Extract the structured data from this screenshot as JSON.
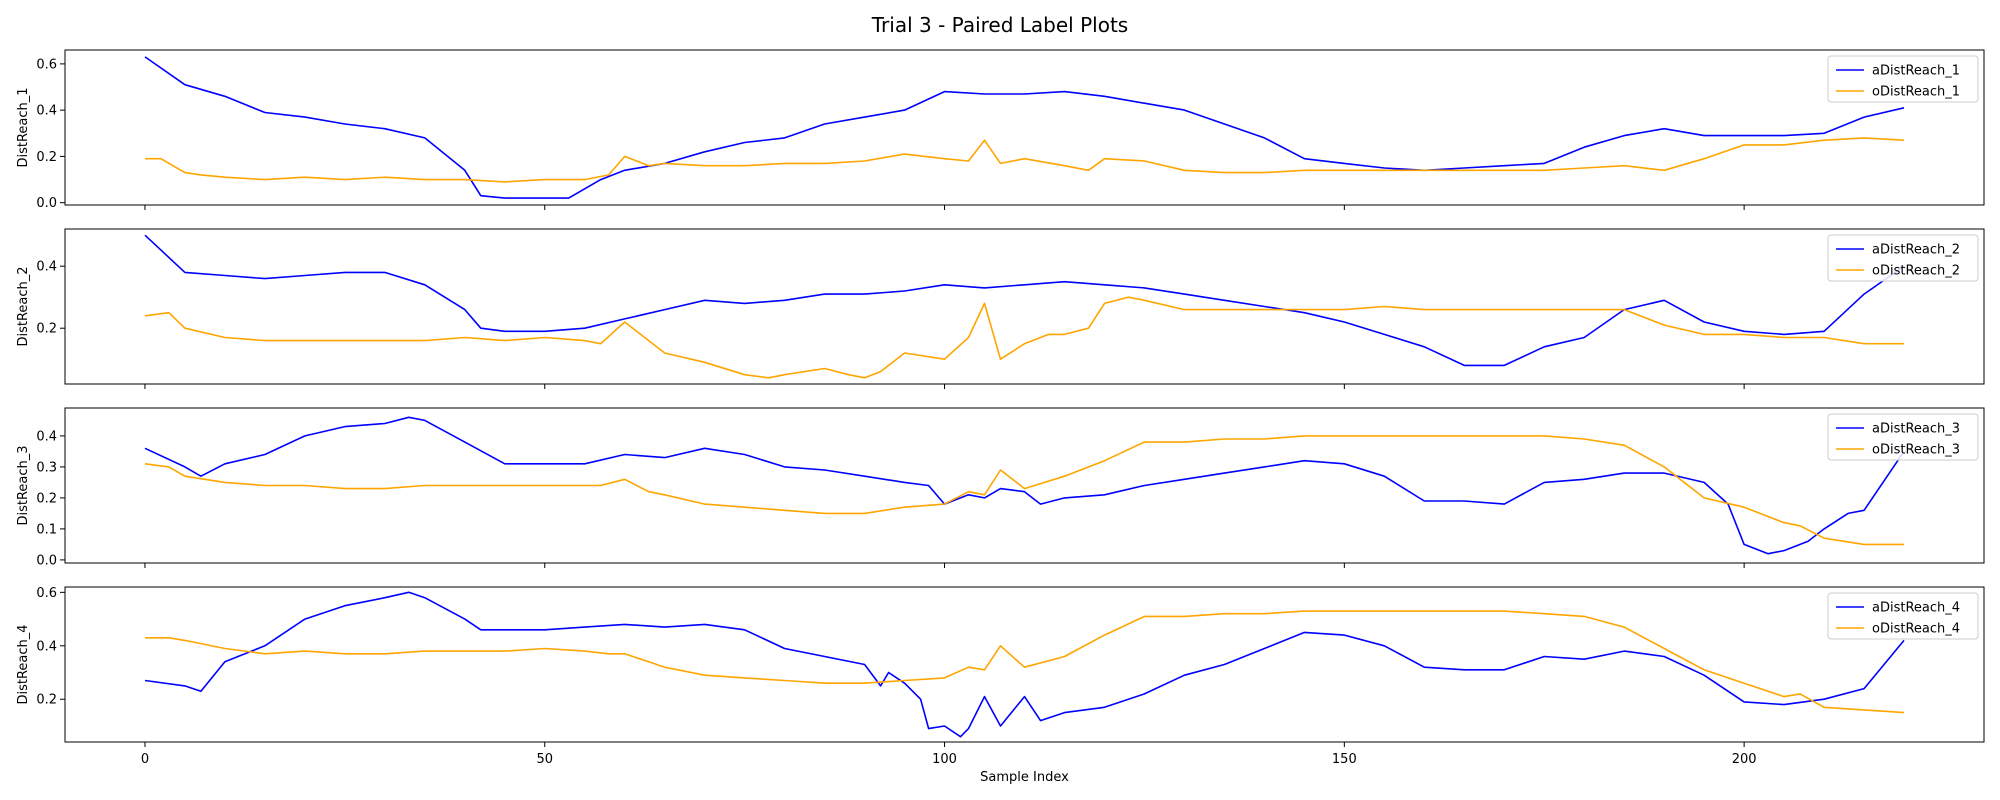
{
  "chart_data": {
    "type": "line",
    "title": "Trial 3 - Paired Label Plots",
    "xlabel": "Sample Index",
    "xlim": [
      -10,
      230
    ],
    "xticks": [
      0,
      50,
      100,
      150,
      200
    ],
    "grid": false,
    "legend_placement": "top-right",
    "colors": {
      "a": "#0000ff",
      "o": "#ffa500"
    },
    "x_step": 5,
    "subplots": [
      {
        "ylabel": "DistReach_1",
        "ylim": [
          -0.01,
          0.66
        ],
        "yticks": [
          0.0,
          0.2,
          0.4,
          0.6
        ],
        "yticklabels": [
          "0.0",
          "0.2",
          "0.4",
          "0.6"
        ],
        "series": [
          {
            "name": "aDistReach_1",
            "color_key": "a",
            "x": [
              0,
              5,
              10,
              15,
              20,
              25,
              30,
              35,
              40,
              42,
              45,
              50,
              53,
              55,
              57,
              60,
              65,
              70,
              75,
              80,
              85,
              90,
              95,
              100,
              105,
              110,
              115,
              120,
              125,
              130,
              135,
              140,
              145,
              150,
              155,
              160,
              165,
              170,
              175,
              180,
              185,
              190,
              195,
              200,
              205,
              210,
              215,
              220
            ],
            "y": [
              0.63,
              0.51,
              0.46,
              0.39,
              0.37,
              0.34,
              0.32,
              0.28,
              0.14,
              0.03,
              0.02,
              0.02,
              0.02,
              0.06,
              0.1,
              0.14,
              0.17,
              0.22,
              0.26,
              0.28,
              0.34,
              0.37,
              0.4,
              0.48,
              0.47,
              0.47,
              0.48,
              0.46,
              0.43,
              0.4,
              0.34,
              0.28,
              0.19,
              0.17,
              0.15,
              0.14,
              0.15,
              0.16,
              0.17,
              0.24,
              0.29,
              0.32,
              0.29,
              0.29,
              0.29,
              0.3,
              0.37,
              0.41
            ]
          },
          {
            "name": "oDistReach_1",
            "color_key": "o",
            "x": [
              0,
              2,
              5,
              7,
              10,
              15,
              20,
              25,
              30,
              35,
              40,
              45,
              50,
              55,
              58,
              60,
              63,
              65,
              70,
              75,
              80,
              85,
              90,
              95,
              100,
              103,
              105,
              107,
              110,
              115,
              118,
              120,
              125,
              130,
              135,
              140,
              145,
              150,
              155,
              160,
              165,
              170,
              175,
              180,
              185,
              190,
              195,
              200,
              205,
              210,
              215,
              220
            ],
            "y": [
              0.19,
              0.19,
              0.13,
              0.12,
              0.11,
              0.1,
              0.11,
              0.1,
              0.11,
              0.1,
              0.1,
              0.09,
              0.1,
              0.1,
              0.12,
              0.2,
              0.16,
              0.17,
              0.16,
              0.16,
              0.17,
              0.17,
              0.18,
              0.21,
              0.19,
              0.18,
              0.27,
              0.17,
              0.19,
              0.16,
              0.14,
              0.19,
              0.18,
              0.14,
              0.13,
              0.13,
              0.14,
              0.14,
              0.14,
              0.14,
              0.14,
              0.14,
              0.14,
              0.15,
              0.16,
              0.14,
              0.19,
              0.25,
              0.25,
              0.27,
              0.28,
              0.27
            ]
          }
        ]
      },
      {
        "ylabel": "DistReach_2",
        "ylim": [
          0.02,
          0.52
        ],
        "yticks": [
          0.2,
          0.4
        ],
        "yticklabels": [
          "0.2",
          "0.4"
        ],
        "series": [
          {
            "name": "aDistReach_2",
            "color_key": "a",
            "x": [
              0,
              5,
              10,
              15,
              20,
              25,
              30,
              35,
              40,
              42,
              45,
              50,
              55,
              60,
              65,
              70,
              75,
              80,
              85,
              90,
              95,
              100,
              105,
              110,
              115,
              120,
              125,
              130,
              135,
              140,
              145,
              150,
              155,
              160,
              165,
              170,
              175,
              180,
              185,
              190,
              195,
              200,
              205,
              210,
              215,
              220
            ],
            "y": [
              0.5,
              0.38,
              0.37,
              0.36,
              0.37,
              0.38,
              0.38,
              0.34,
              0.26,
              0.2,
              0.19,
              0.19,
              0.2,
              0.23,
              0.26,
              0.29,
              0.28,
              0.29,
              0.31,
              0.31,
              0.32,
              0.34,
              0.33,
              0.34,
              0.35,
              0.34,
              0.33,
              0.31,
              0.29,
              0.27,
              0.25,
              0.22,
              0.18,
              0.14,
              0.08,
              0.08,
              0.14,
              0.17,
              0.26,
              0.29,
              0.22,
              0.19,
              0.18,
              0.19,
              0.31,
              0.4
            ]
          },
          {
            "name": "oDistReach_2",
            "color_key": "o",
            "x": [
              0,
              3,
              5,
              10,
              15,
              20,
              25,
              30,
              35,
              40,
              45,
              50,
              55,
              57,
              60,
              63,
              65,
              70,
              75,
              78,
              80,
              85,
              88,
              90,
              92,
              95,
              100,
              103,
              105,
              107,
              110,
              113,
              115,
              118,
              120,
              123,
              125,
              130,
              135,
              140,
              145,
              150,
              155,
              160,
              165,
              170,
              175,
              180,
              185,
              190,
              195,
              200,
              205,
              210,
              215,
              220
            ],
            "y": [
              0.24,
              0.25,
              0.2,
              0.17,
              0.16,
              0.16,
              0.16,
              0.16,
              0.16,
              0.17,
              0.16,
              0.17,
              0.16,
              0.15,
              0.22,
              0.16,
              0.12,
              0.09,
              0.05,
              0.04,
              0.05,
              0.07,
              0.05,
              0.04,
              0.06,
              0.12,
              0.1,
              0.17,
              0.28,
              0.1,
              0.15,
              0.18,
              0.18,
              0.2,
              0.28,
              0.3,
              0.29,
              0.26,
              0.26,
              0.26,
              0.26,
              0.26,
              0.27,
              0.26,
              0.26,
              0.26,
              0.26,
              0.26,
              0.26,
              0.21,
              0.18,
              0.18,
              0.17,
              0.17,
              0.15,
              0.15
            ]
          }
        ]
      },
      {
        "ylabel": "DistReach_3",
        "ylim": [
          -0.01,
          0.49
        ],
        "yticks": [
          0.0,
          0.1,
          0.2,
          0.3,
          0.4
        ],
        "yticklabels": [
          "0.0",
          "0.1",
          "0.2",
          "0.3",
          "0.4"
        ],
        "series": [
          {
            "name": "aDistReach_3",
            "color_key": "a",
            "x": [
              0,
              5,
              7,
              10,
              15,
              20,
              25,
              30,
              33,
              35,
              40,
              45,
              50,
              55,
              60,
              65,
              70,
              75,
              80,
              85,
              90,
              95,
              98,
              100,
              103,
              105,
              107,
              110,
              112,
              115,
              120,
              125,
              130,
              135,
              140,
              145,
              150,
              155,
              160,
              165,
              170,
              175,
              180,
              185,
              190,
              195,
              198,
              200,
              203,
              205,
              208,
              210,
              213,
              215,
              220
            ],
            "y": [
              0.36,
              0.3,
              0.27,
              0.31,
              0.34,
              0.4,
              0.43,
              0.44,
              0.46,
              0.45,
              0.38,
              0.31,
              0.31,
              0.31,
              0.34,
              0.33,
              0.36,
              0.34,
              0.3,
              0.29,
              0.27,
              0.25,
              0.24,
              0.18,
              0.21,
              0.2,
              0.23,
              0.22,
              0.18,
              0.2,
              0.21,
              0.24,
              0.26,
              0.28,
              0.3,
              0.32,
              0.31,
              0.27,
              0.19,
              0.19,
              0.18,
              0.25,
              0.26,
              0.28,
              0.28,
              0.25,
              0.18,
              0.05,
              0.02,
              0.03,
              0.06,
              0.1,
              0.15,
              0.16,
              0.35
            ]
          },
          {
            "name": "oDistReach_3",
            "color_key": "o",
            "x": [
              0,
              3,
              5,
              10,
              15,
              20,
              25,
              30,
              35,
              40,
              45,
              50,
              55,
              57,
              60,
              63,
              65,
              70,
              75,
              80,
              85,
              90,
              95,
              100,
              103,
              105,
              107,
              110,
              115,
              120,
              125,
              130,
              135,
              140,
              145,
              150,
              155,
              160,
              165,
              170,
              175,
              180,
              185,
              190,
              195,
              200,
              205,
              207,
              210,
              215,
              220
            ],
            "y": [
              0.31,
              0.3,
              0.27,
              0.25,
              0.24,
              0.24,
              0.23,
              0.23,
              0.24,
              0.24,
              0.24,
              0.24,
              0.24,
              0.24,
              0.26,
              0.22,
              0.21,
              0.18,
              0.17,
              0.16,
              0.15,
              0.15,
              0.17,
              0.18,
              0.22,
              0.21,
              0.29,
              0.23,
              0.27,
              0.32,
              0.38,
              0.38,
              0.39,
              0.39,
              0.4,
              0.4,
              0.4,
              0.4,
              0.4,
              0.4,
              0.4,
              0.39,
              0.37,
              0.3,
              0.2,
              0.17,
              0.12,
              0.11,
              0.07,
              0.05,
              0.05
            ]
          }
        ]
      },
      {
        "ylabel": "DistReach_4",
        "ylim": [
          0.04,
          0.62
        ],
        "yticks": [
          0.2,
          0.4,
          0.6
        ],
        "yticklabels": [
          "0.2",
          "0.4",
          "0.6"
        ],
        "series": [
          {
            "name": "aDistReach_4",
            "color_key": "a",
            "x": [
              0,
              5,
              7,
              10,
              15,
              20,
              25,
              30,
              33,
              35,
              40,
              42,
              45,
              50,
              55,
              60,
              65,
              70,
              75,
              80,
              85,
              90,
              92,
              93,
              95,
              97,
              98,
              100,
              102,
              103,
              105,
              107,
              110,
              112,
              115,
              120,
              125,
              130,
              135,
              140,
              145,
              150,
              155,
              160,
              165,
              170,
              175,
              180,
              185,
              190,
              195,
              200,
              205,
              210,
              215,
              220
            ],
            "y": [
              0.27,
              0.25,
              0.23,
              0.34,
              0.4,
              0.5,
              0.55,
              0.58,
              0.6,
              0.58,
              0.5,
              0.46,
              0.46,
              0.46,
              0.47,
              0.48,
              0.47,
              0.48,
              0.46,
              0.39,
              0.36,
              0.33,
              0.25,
              0.3,
              0.26,
              0.2,
              0.09,
              0.1,
              0.06,
              0.09,
              0.21,
              0.1,
              0.21,
              0.12,
              0.15,
              0.17,
              0.22,
              0.29,
              0.33,
              0.39,
              0.45,
              0.44,
              0.4,
              0.32,
              0.31,
              0.31,
              0.36,
              0.35,
              0.38,
              0.36,
              0.29,
              0.19,
              0.18,
              0.2,
              0.24,
              0.42
            ]
          },
          {
            "name": "oDistReach_4",
            "color_key": "o",
            "x": [
              0,
              3,
              5,
              10,
              15,
              20,
              25,
              30,
              35,
              40,
              45,
              50,
              55,
              58,
              60,
              63,
              65,
              70,
              75,
              80,
              85,
              90,
              95,
              100,
              103,
              105,
              107,
              110,
              115,
              120,
              125,
              130,
              135,
              140,
              145,
              150,
              155,
              160,
              165,
              170,
              175,
              180,
              185,
              190,
              195,
              200,
              205,
              207,
              210,
              215,
              220
            ],
            "y": [
              0.43,
              0.43,
              0.42,
              0.39,
              0.37,
              0.38,
              0.37,
              0.37,
              0.38,
              0.38,
              0.38,
              0.39,
              0.38,
              0.37,
              0.37,
              0.34,
              0.32,
              0.29,
              0.28,
              0.27,
              0.26,
              0.26,
              0.27,
              0.28,
              0.32,
              0.31,
              0.4,
              0.32,
              0.36,
              0.44,
              0.51,
              0.51,
              0.52,
              0.52,
              0.53,
              0.53,
              0.53,
              0.53,
              0.53,
              0.53,
              0.52,
              0.51,
              0.47,
              0.39,
              0.31,
              0.26,
              0.21,
              0.22,
              0.17,
              0.16,
              0.15
            ]
          }
        ]
      }
    ]
  }
}
